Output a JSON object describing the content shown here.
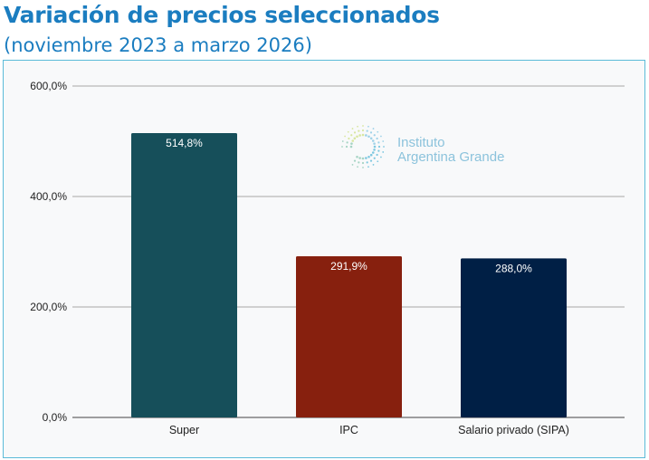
{
  "chart_data": {
    "type": "bar",
    "title": "Variación de precios seleccionados",
    "subtitle": "(noviembre 2023 a marzo 2026)",
    "categories": [
      "Super",
      "IPC",
      "Salario privado (SIPA)"
    ],
    "values": [
      514.8,
      291.9,
      288.0
    ],
    "data_labels": [
      "514,8%",
      "291,9%",
      "288,0%"
    ],
    "colors": [
      "#164f5a",
      "#87200e",
      "#001f45"
    ],
    "xlabel": "",
    "ylabel": "",
    "ylim": [
      0,
      600
    ],
    "yticks": [
      0,
      200,
      400,
      600
    ],
    "ytick_labels": [
      "0,0%",
      "200,0%",
      "400,0%",
      "600,0%"
    ],
    "grid": true,
    "legend": "none"
  },
  "watermark": {
    "line1": "Instituto",
    "line2": "Argentina Grande"
  }
}
